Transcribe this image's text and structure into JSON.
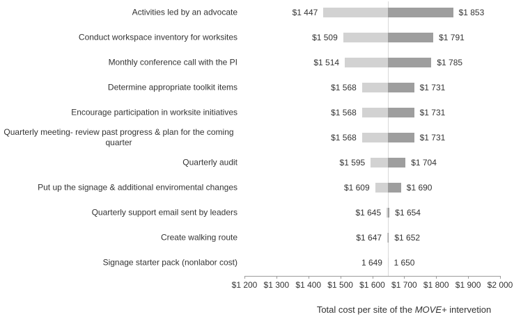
{
  "chart_data": {
    "type": "bar",
    "subtype": "tornado",
    "orientation": "horizontal",
    "title": "",
    "xlabel_parts": {
      "prefix": "Total cost per site of the ",
      "italic": "MOVE+",
      "suffix": " intervetion"
    },
    "xlim": [
      1200,
      2000
    ],
    "baseline_value": 1650,
    "grid": "single-baseline-gridline",
    "legend_position": "none",
    "x_tick_values": [
      1200,
      1300,
      1400,
      1500,
      1600,
      1700,
      1800,
      1900,
      2000
    ],
    "x_tick_labels": [
      "$1 200",
      "$1 300",
      "$1 400",
      "$1 500",
      "$1 600",
      "$1 700",
      "$1 800",
      "$1 900",
      "$2 000"
    ],
    "categories": [
      "Activities led by an advocate",
      "Conduct workspace inventory for worksites",
      "Monthly conference call with the PI",
      "Determine appropriate toolkit items",
      "Encourage participation in worksite initiatives",
      "Quarterly meeting- review past progress & plan for the coming quarter",
      "Quarterly audit",
      "Put up the signage & additional enviromental changes",
      "Quarterly support email sent by leaders",
      "Create walking route",
      "Signage starter pack (nonlabor cost)"
    ],
    "series": [
      {
        "name": "low",
        "values": [
          1447,
          1509,
          1514,
          1568,
          1568,
          1568,
          1595,
          1609,
          1645,
          1647,
          1649
        ]
      },
      {
        "name": "high",
        "values": [
          1853,
          1791,
          1785,
          1731,
          1731,
          1731,
          1704,
          1690,
          1654,
          1652,
          1650
        ]
      }
    ],
    "bar_labels": [
      {
        "low": "$1 447",
        "high": "$1 853"
      },
      {
        "low": "$1 509",
        "high": "$1 791"
      },
      {
        "low": "$1 514",
        "high": "$1 785"
      },
      {
        "low": "$1 568",
        "high": "$1 731"
      },
      {
        "low": "$1 568",
        "high": "$1 731"
      },
      {
        "low": "$1 568",
        "high": "$1 731"
      },
      {
        "low": "$1 595",
        "high": "$1 704"
      },
      {
        "low": "$1 609",
        "high": "$1 690"
      },
      {
        "low": "$1 645",
        "high": "$1 654"
      },
      {
        "low": "$1 647",
        "high": "$1 652"
      },
      {
        "low": "1 649",
        "high": "1 650"
      }
    ],
    "colors": {
      "low_bar": "#d2d2d2",
      "high_bar": "#9e9e9e",
      "baseline_line": "#d9d9d9",
      "axis_line": "#9b9b9b",
      "text": "#333333"
    }
  }
}
